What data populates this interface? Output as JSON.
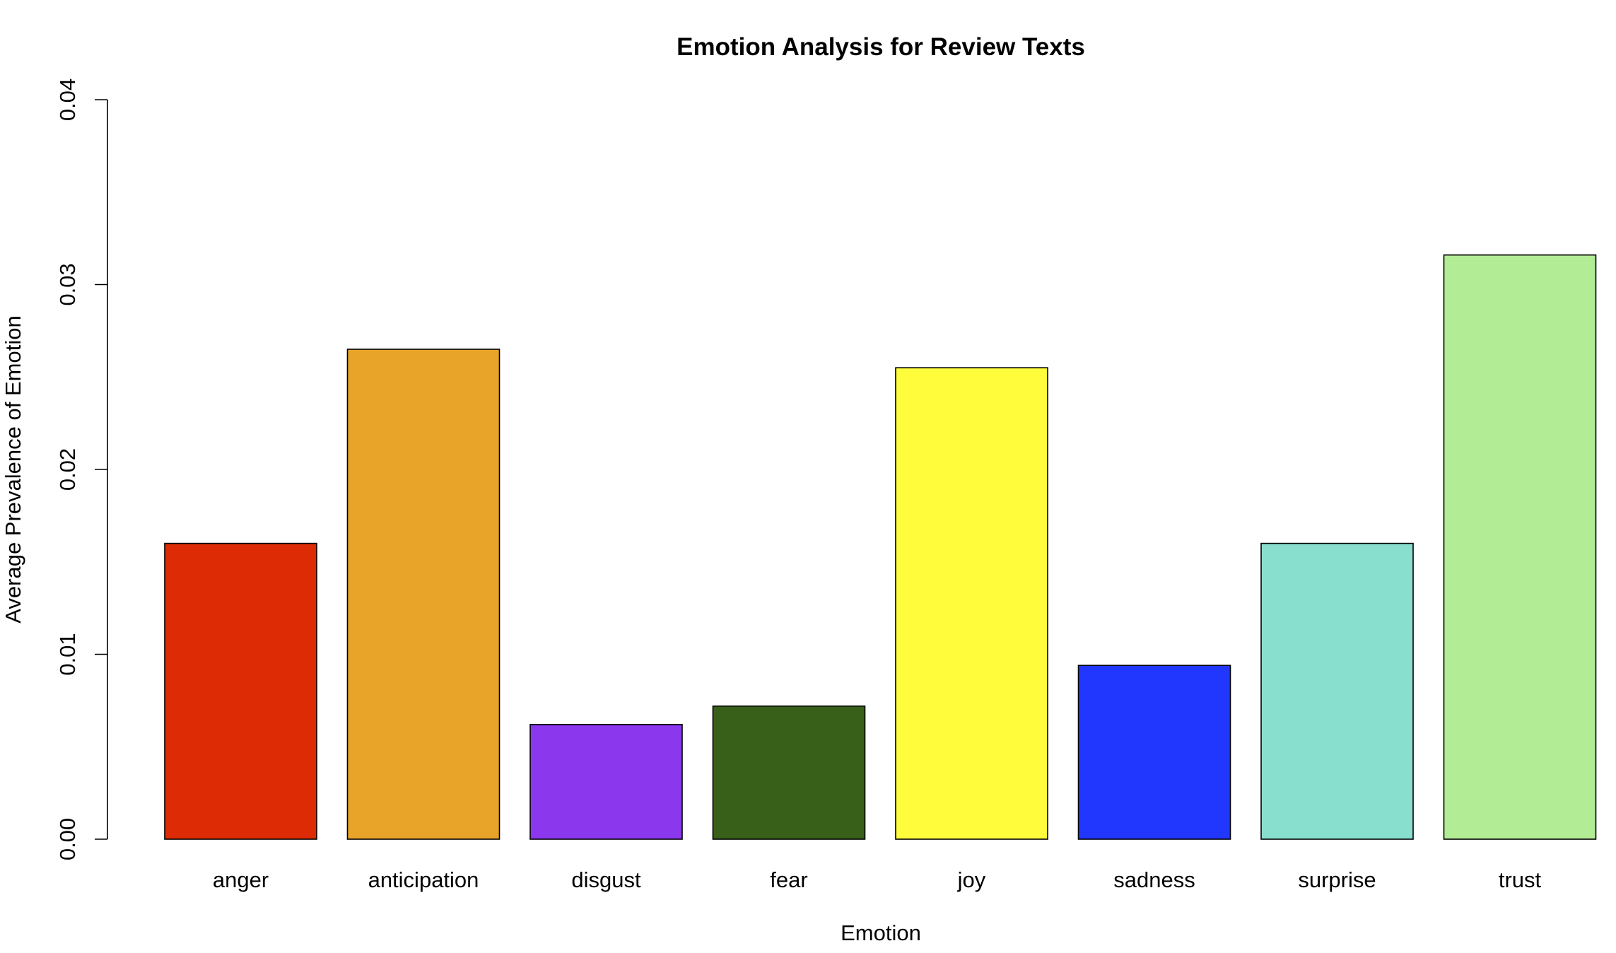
{
  "chart_data": {
    "type": "bar",
    "title": "Emotion Analysis for Review Texts",
    "xlabel": "Emotion",
    "ylabel": "Average Prevalence of Emotion",
    "ylim": [
      0,
      0.04
    ],
    "yticks": [
      "0.00",
      "0.01",
      "0.02",
      "0.03",
      "0.04"
    ],
    "grid": false,
    "legend": "none",
    "categories": [
      "anger",
      "anticipation",
      "disgust",
      "fear",
      "joy",
      "sadness",
      "surprise",
      "trust"
    ],
    "values": [
      0.016,
      0.0265,
      0.0062,
      0.0072,
      0.0255,
      0.0094,
      0.016,
      0.0316
    ],
    "colors": [
      "#DD2C05",
      "#E8A329",
      "#8A37ED",
      "#396018",
      "#FEFC3B",
      "#2137FE",
      "#89DFCD",
      "#B2EC94"
    ]
  }
}
